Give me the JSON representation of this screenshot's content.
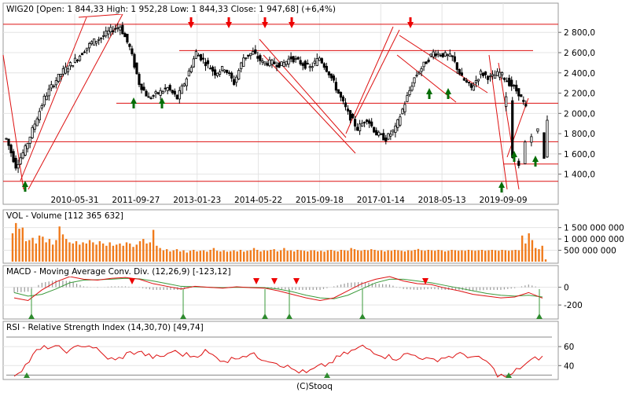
{
  "chart_data": [
    {
      "type": "candlestick",
      "panel": "price",
      "header": "WIG20 [Open: 1 844,33  High: 1 952,28  Low: 1 844,33  Close: 1 947,68] (+6,4%)",
      "x_tick_labels": [
        "2010-05-31",
        "2011-09-27",
        "2013-01-23",
        "2014-05-22",
        "2015-09-18",
        "2017-01-14",
        "2018-05-13",
        "2019-09-09"
      ],
      "y_tick_labels": [
        "1 400,0",
        "1 600,0",
        "1 800,0",
        "2 000,0",
        "2 200,0",
        "2 400,0",
        "2 600,0",
        "2 800,0"
      ],
      "ylim": [
        1250,
        2980
      ],
      "series": {
        "x": [
          0,
          3,
          6,
          9,
          12,
          15,
          18,
          21,
          24,
          27,
          30,
          33,
          36,
          39,
          42,
          45,
          48,
          51,
          54,
          57,
          60,
          63,
          66,
          69,
          72,
          75,
          78,
          81,
          84,
          87,
          90,
          93,
          96,
          99,
          102,
          105,
          108,
          111,
          114,
          117,
          120,
          123,
          126,
          129,
          132,
          135,
          138,
          141,
          144,
          147,
          150,
          153,
          156,
          159,
          162,
          165
        ],
        "close": [
          1750,
          1480,
          1650,
          1900,
          2150,
          2300,
          2420,
          2500,
          2600,
          2700,
          2750,
          2820,
          2860,
          2650,
          2300,
          2150,
          2200,
          2250,
          2150,
          2350,
          2600,
          2500,
          2400,
          2450,
          2300,
          2550,
          2600,
          2500,
          2500,
          2480,
          2550,
          2500,
          2450,
          2550,
          2400,
          2200,
          2000,
          1850,
          1950,
          1800,
          1750,
          1850,
          2100,
          2350,
          2480,
          2600,
          2580,
          2550,
          2350,
          2250,
          2400,
          2350,
          2400,
          2300,
          2200,
          2000
        ]
      },
      "tail": {
        "x": [
          158,
          160,
          162,
          164,
          166,
          168,
          170,
          171
        ],
        "close": [
          2150,
          1550,
          1480,
          1720,
          1800,
          1830,
          1550,
          1948
        ]
      },
      "horizontal_levels": [
        2880,
        2620,
        2100,
        1720,
        1500,
        1330
      ],
      "sell_arrow_x": [
        54,
        62,
        72,
        79,
        126
      ],
      "buy_arrow_x": [
        3,
        40,
        48,
        132,
        138,
        155,
        157,
        165
      ]
    },
    {
      "type": "bar",
      "panel": "volume",
      "header": "VOL - Volume [112 365 632]",
      "y_tick_labels": [
        "500 000 000",
        "1 000 000 000",
        "1 500 000 000"
      ],
      "ylim": [
        0,
        1800000000
      ],
      "values": [
        1250000000,
        1700000000,
        1450000000,
        1500000000,
        900000000,
        950000000,
        1050000000,
        800000000,
        1150000000,
        1100000000,
        850000000,
        1000000000,
        750000000,
        950000000,
        1550000000,
        1200000000,
        1000000000,
        850000000,
        800000000,
        900000000,
        750000000,
        850000000,
        800000000,
        950000000,
        850000000,
        750000000,
        900000000,
        800000000,
        700000000,
        850000000,
        700000000,
        750000000,
        800000000,
        700000000,
        850000000,
        800000000,
        650000000,
        750000000,
        900000000,
        1000000000,
        800000000,
        850000000,
        1400000000,
        700000000,
        600000000,
        500000000,
        550000000,
        450000000,
        500000000,
        550000000,
        450000000,
        500000000,
        400000000,
        480000000,
        520000000,
        450000000,
        480000000,
        500000000,
        440000000,
        520000000,
        600000000,
        480000000,
        450000000,
        500000000,
        440000000,
        460000000,
        500000000,
        450000000,
        520000000,
        440000000,
        480000000,
        500000000,
        600000000,
        520000000,
        450000000,
        500000000,
        480000000,
        520000000,
        550000000,
        450000000,
        500000000,
        600000000,
        480000000,
        500000000,
        450000000,
        520000000,
        500000000,
        480000000,
        450000000,
        500000000,
        500000000,
        450000000,
        480000000,
        440000000,
        500000000,
        520000000,
        480000000,
        450000000,
        520000000,
        500000000,
        480000000,
        600000000,
        550000000,
        500000000,
        480000000,
        520000000,
        500000000,
        550000000,
        520000000,
        480000000,
        500000000,
        450000000,
        500000000,
        480000000,
        520000000,
        500000000,
        480000000,
        450000000,
        500000000,
        480000000,
        520000000,
        560000000,
        500000000,
        480000000,
        520000000,
        500000000,
        480000000,
        520000000,
        500000000,
        450000000,
        480000000,
        520000000,
        500000000,
        480000000,
        500000000,
        480000000,
        520000000,
        500000000,
        480000000,
        500000000,
        520000000,
        480000000,
        500000000,
        520000000,
        500000000,
        480000000,
        520000000,
        500000000,
        480000000,
        500000000,
        520000000,
        500000000,
        1150000000,
        800000000,
        1250000000,
        950000000,
        600000000,
        550000000,
        700000000,
        100000000
      ]
    },
    {
      "type": "line",
      "panel": "macd",
      "header": "MACD - Moving Average Conv. Div. (12,26,9) [-123,12]",
      "y_tick_labels": [
        "0",
        "-200"
      ],
      "ylim": [
        -340,
        120
      ],
      "macd": [
        -120,
        -150,
        -30,
        60,
        120,
        90,
        80,
        100,
        110,
        90,
        40,
        10,
        -20,
        10,
        0,
        -10,
        5,
        -5,
        -10,
        -40,
        -80,
        -120,
        -150,
        -120,
        -40,
        40,
        90,
        120,
        70,
        40,
        30,
        -10,
        -40,
        -80,
        -100,
        -120,
        -110,
        -60,
        -123
      ],
      "signal": [
        -60,
        -100,
        -80,
        -20,
        50,
        80,
        85,
        90,
        100,
        95,
        70,
        40,
        10,
        5,
        0,
        -5,
        0,
        -2,
        -5,
        -20,
        -50,
        -90,
        -120,
        -130,
        -90,
        -20,
        50,
        90,
        90,
        70,
        50,
        20,
        -10,
        -40,
        -70,
        -90,
        -100,
        -90,
        -110
      ],
      "sell_arrow_index": [
        5,
        14,
        16,
        18,
        26
      ],
      "buy_arrow_index": [
        1,
        11,
        16,
        17,
        22,
        38
      ]
    },
    {
      "type": "line",
      "panel": "rsi",
      "header": "RSI - Relative Strength Index (14,30,70) [49,74]",
      "y_tick_labels": [
        "60",
        "40"
      ],
      "ylim": [
        27,
        75
      ],
      "levels": [
        70,
        30
      ],
      "values": [
        30,
        40,
        55,
        60,
        58,
        55,
        62,
        60,
        50,
        45,
        52,
        55,
        50,
        48,
        55,
        52,
        50,
        55,
        48,
        45,
        50,
        52,
        48,
        45,
        40,
        35,
        32,
        38,
        42,
        50,
        55,
        60,
        55,
        50,
        48,
        52,
        50,
        45,
        48,
        50,
        52,
        48,
        45,
        30,
        28,
        38,
        45,
        50
      ],
      "buy_arrow_index": [
        0,
        20,
        42
      ]
    }
  ],
  "footer": "(C)Stooq"
}
